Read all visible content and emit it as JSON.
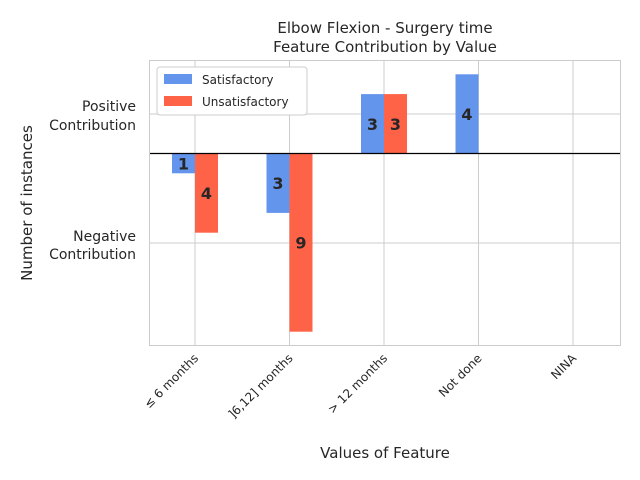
{
  "chart_data": {
    "type": "bar",
    "title_line1": "Elbow Flexion - Surgery time",
    "title_line2": "Feature Contribution by Value",
    "xlabel": "Values of Feature",
    "ylabel": "Number of instances",
    "y_tick_labels": {
      "positive": [
        "Positive",
        "Contribution"
      ],
      "negative": [
        "Negative",
        "Contribution"
      ]
    },
    "categories": [
      "≤ 6 months",
      "]6,12] months",
      "> 12 months",
      "Not done",
      "NINA"
    ],
    "series": [
      {
        "name": "Satisfactory",
        "color": "#6495ED",
        "values": [
          -1,
          -3,
          3,
          4,
          0
        ]
      },
      {
        "name": "Unsatisfactory",
        "color": "#FF6347",
        "values": [
          -4,
          -9,
          3,
          0,
          0
        ]
      }
    ],
    "legend_position": "upper-left",
    "grid": true,
    "zero_line_color": "#000000"
  }
}
